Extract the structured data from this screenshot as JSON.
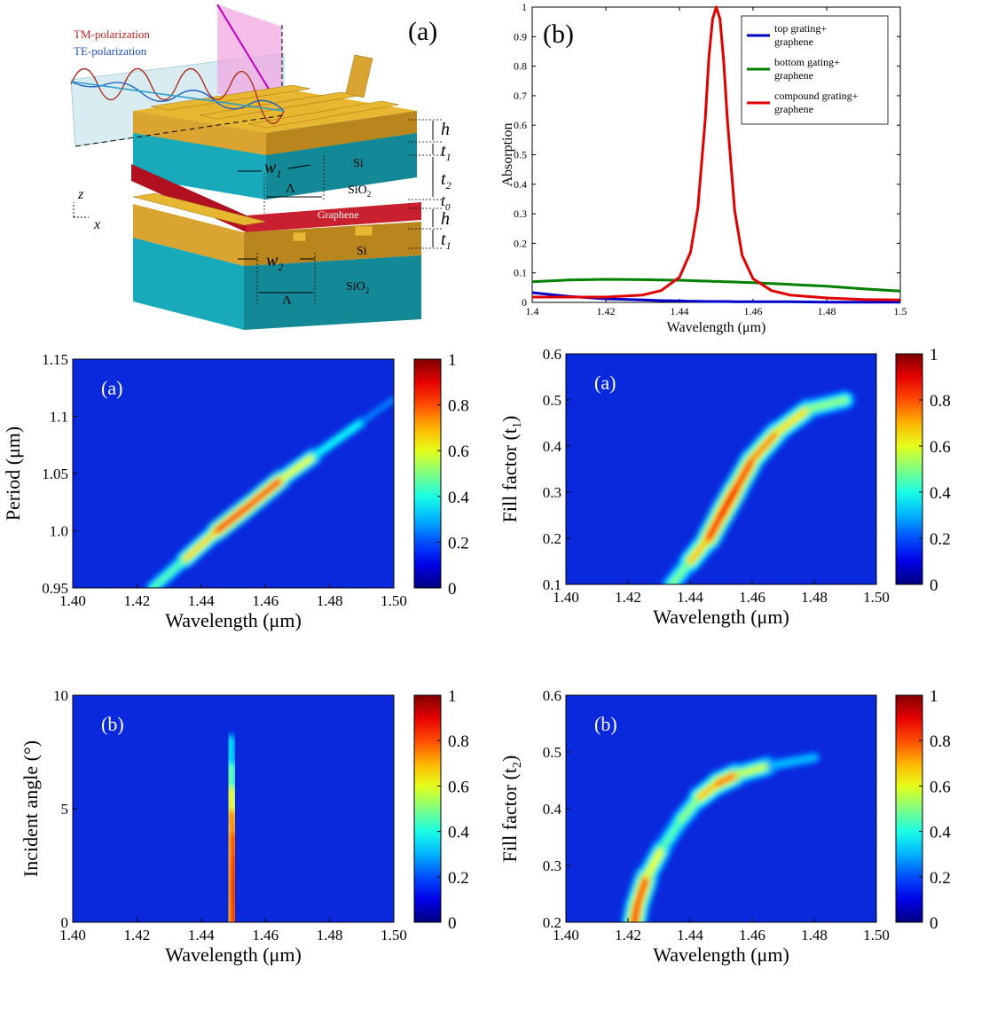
{
  "colors": {
    "top": "#0000c8",
    "bottom": "#008000",
    "compound": "#e00000",
    "sio2": "#20a0b0",
    "si": "#d9a530",
    "graphene": "#b01020"
  },
  "diagram": {
    "panel_label": "(a)",
    "tm_label": "TM-polarization",
    "te_label": "TE-polarization",
    "h_label": "h",
    "t1_label": "t",
    "t1_sub": "1",
    "t2_label": "t",
    "t2_sub": "2",
    "t0_label": "t",
    "t0_sub": "0",
    "h2_label": "h",
    "t1b_label": "t",
    "t1b_sub": "1",
    "w1_label": "w",
    "w1_sub": "1",
    "w2_label": "w",
    "w2_sub": "2",
    "period_label": "Λ",
    "period_label2": "Λ",
    "si_label": "Si",
    "si_label2": "Si",
    "sio2_label": "SiO",
    "sio2_sub": "2",
    "sio2_label2": "SiO",
    "sio2_sub2": "2",
    "graphene_label": "Graphene",
    "axis_z": "z",
    "axis_x": "x"
  },
  "chart_data": [
    {
      "type": "line",
      "panel_label": "(b)",
      "xlabel": "Wavelength (μm)",
      "ylabel": "Absorption",
      "xlim": [
        1.4,
        1.5
      ],
      "ylim": [
        0,
        1
      ],
      "xticks": [
        "1.4",
        "1.42",
        "1.44",
        "1.46",
        "1.48",
        "1.5"
      ],
      "yticks": [
        "0",
        "0.1",
        "0.2",
        "0.3",
        "0.4",
        "0.5",
        "0.6",
        "0.7",
        "0.8",
        "0.9",
        "1"
      ],
      "legend_position": "top-right",
      "legend": [
        {
          "line1": "top grating+",
          "line2": "graphene"
        },
        {
          "line1": "bottom gating+",
          "line2": "graphene"
        },
        {
          "line1": "compound grating+",
          "line2": "graphene"
        }
      ],
      "x": [
        1.4,
        1.41,
        1.42,
        1.43,
        1.435,
        1.44,
        1.443,
        1.445,
        1.447,
        1.448,
        1.449,
        1.45,
        1.451,
        1.452,
        1.453,
        1.455,
        1.457,
        1.46,
        1.465,
        1.47,
        1.48,
        1.49,
        1.5
      ],
      "series": [
        {
          "name": "top grating+ graphene",
          "values": [
            0.033,
            0.02,
            0.012,
            0.008,
            0.006,
            0.005,
            0.004,
            0.004,
            0.003,
            0.003,
            0.003,
            0.003,
            0.003,
            0.003,
            0.003,
            0.002,
            0.002,
            0.002,
            0.002,
            0.002,
            0.001,
            0.001,
            0.001
          ]
        },
        {
          "name": "bottom gating+ graphene",
          "values": [
            0.07,
            0.076,
            0.078,
            0.077,
            0.076,
            0.075,
            0.074,
            0.073,
            0.072,
            0.072,
            0.071,
            0.071,
            0.071,
            0.07,
            0.07,
            0.069,
            0.068,
            0.067,
            0.064,
            0.061,
            0.055,
            0.046,
            0.038
          ]
        },
        {
          "name": "compound grating+ graphene",
          "values": [
            0.018,
            0.018,
            0.018,
            0.025,
            0.04,
            0.085,
            0.17,
            0.32,
            0.62,
            0.83,
            0.96,
            1.0,
            0.96,
            0.82,
            0.62,
            0.31,
            0.16,
            0.08,
            0.04,
            0.025,
            0.015,
            0.01,
            0.008
          ]
        }
      ]
    },
    {
      "type": "heatmap",
      "panel_label": "(a)",
      "xlabel": "Wavelength (μm)",
      "ylabel": "Period (μm)",
      "xlim": [
        1.4,
        1.5
      ],
      "ylim": [
        0.95,
        1.15
      ],
      "xticks": [
        "1.40",
        "1.42",
        "1.44",
        "1.46",
        "1.48",
        "1.50"
      ],
      "yticks": [
        "0.95",
        "1.0",
        "1.05",
        "1.1",
        "1.15"
      ],
      "colorbar": {
        "range": [
          0,
          1
        ],
        "ticks": [
          "0",
          "0.2",
          "0.4",
          "0.6",
          "0.8",
          "1"
        ]
      },
      "ridge": [
        [
          1.425,
          0.95
        ],
        [
          1.435,
          0.975
        ],
        [
          1.445,
          1.0
        ],
        [
          1.455,
          1.022
        ],
        [
          1.465,
          1.045
        ],
        [
          1.475,
          1.065
        ],
        [
          1.49,
          1.095
        ],
        [
          1.5,
          1.115
        ]
      ],
      "ridge_peak": [
        0.3,
        0.55,
        0.85,
        1.0,
        0.8,
        0.45,
        0.2,
        0.1
      ]
    },
    {
      "type": "heatmap",
      "panel_label": "(a)",
      "xlabel": "Wavelength (μm)",
      "ylabel": "Fill factor (t",
      "ylabel_sub": "1",
      "ylabel_end": ")",
      "xlim": [
        1.4,
        1.5
      ],
      "ylim": [
        0.1,
        0.6
      ],
      "xticks": [
        "1.40",
        "1.42",
        "1.44",
        "1.46",
        "1.48",
        "1.50"
      ],
      "yticks": [
        "0.1",
        "0.2",
        "0.3",
        "0.4",
        "0.5",
        "0.6"
      ],
      "colorbar": {
        "range": [
          0,
          1
        ],
        "ticks": [
          "0",
          "0.2",
          "0.4",
          "0.6",
          "0.8",
          "1"
        ]
      },
      "ridge": [
        [
          1.434,
          0.1
        ],
        [
          1.44,
          0.15
        ],
        [
          1.446,
          0.2
        ],
        [
          1.45,
          0.25
        ],
        [
          1.455,
          0.31
        ],
        [
          1.46,
          0.37
        ],
        [
          1.468,
          0.43
        ],
        [
          1.478,
          0.48
        ],
        [
          1.49,
          0.5
        ]
      ],
      "ridge_peak": [
        0.35,
        0.6,
        0.85,
        1.0,
        0.95,
        0.85,
        0.75,
        0.6,
        0.4
      ]
    },
    {
      "type": "heatmap",
      "panel_label": "(b)",
      "xlabel": "Wavelength (μm)",
      "ylabel": "Incident angle (°)",
      "xlim": [
        1.4,
        1.5
      ],
      "ylim": [
        0,
        10
      ],
      "xticks": [
        "1.40",
        "1.42",
        "1.44",
        "1.46",
        "1.48",
        "1.50"
      ],
      "yticks": [
        "0",
        "5",
        "10"
      ],
      "colorbar": {
        "range": [
          0,
          1
        ],
        "ticks": [
          "0",
          "0.2",
          "0.4",
          "0.6",
          "0.8",
          "1"
        ]
      },
      "ridge": [
        [
          1.45,
          0.0
        ],
        [
          1.45,
          1.0
        ],
        [
          1.45,
          2.0
        ],
        [
          1.45,
          3.0
        ],
        [
          1.4498,
          4.0
        ],
        [
          1.4495,
          5.0
        ],
        [
          1.449,
          6.0
        ],
        [
          1.449,
          7.0
        ],
        [
          1.449,
          8.0
        ]
      ],
      "ridge_peak": [
        0.95,
        1.0,
        1.0,
        0.95,
        0.9,
        0.75,
        0.55,
        0.35,
        0.2
      ]
    },
    {
      "type": "heatmap",
      "panel_label": "(b)",
      "xlabel": "Wavelength (μm)",
      "ylabel": "Fill factor (t",
      "ylabel_sub": "2",
      "ylabel_end": ")",
      "xlim": [
        1.4,
        1.5
      ],
      "ylim": [
        0.2,
        0.6
      ],
      "xticks": [
        "1.40",
        "1.42",
        "1.44",
        "1.46",
        "1.48",
        "1.50"
      ],
      "yticks": [
        "0.2",
        "0.3",
        "0.4",
        "0.5",
        "0.6"
      ],
      "colorbar": {
        "range": [
          0,
          1
        ],
        "ticks": [
          "0",
          "0.2",
          "0.4",
          "0.6",
          "0.8",
          "1"
        ]
      },
      "ridge": [
        [
          1.422,
          0.2
        ],
        [
          1.423,
          0.23
        ],
        [
          1.426,
          0.28
        ],
        [
          1.431,
          0.33
        ],
        [
          1.437,
          0.38
        ],
        [
          1.443,
          0.42
        ],
        [
          1.449,
          0.445
        ],
        [
          1.455,
          0.46
        ],
        [
          1.465,
          0.475
        ],
        [
          1.48,
          0.49
        ]
      ],
      "ridge_peak": [
        0.85,
        0.95,
        0.8,
        0.45,
        0.4,
        0.6,
        0.85,
        0.8,
        0.35,
        0.1
      ]
    }
  ]
}
